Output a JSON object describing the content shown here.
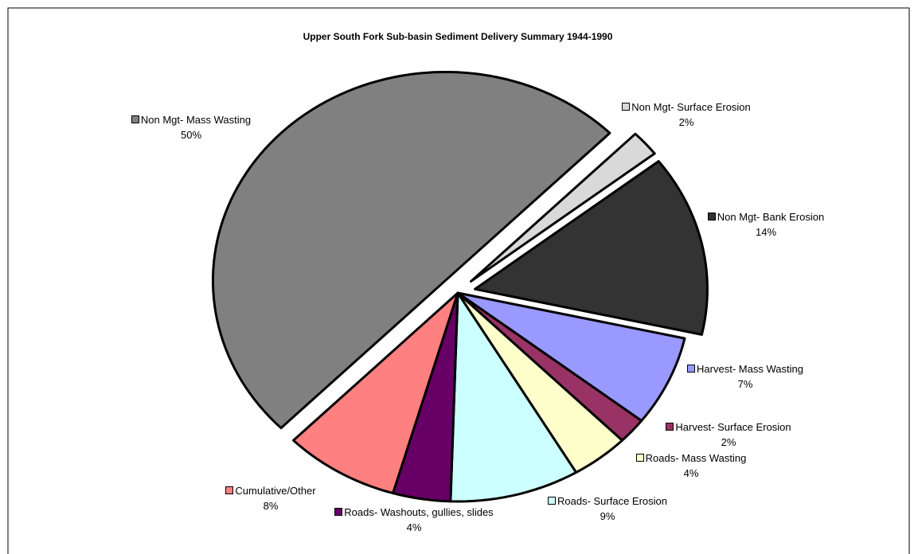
{
  "chart_data": {
    "type": "pie",
    "title": "Upper South Fork Sub-basin Sediment Delivery Summary 1944-1990",
    "categories": [
      "Non Mgt- Mass Wasting",
      "Non Mgt- Surface Erosion",
      "Non Mgt- Bank Erosion",
      "Harvest- Mass Wasting",
      "Harvest- Surface Erosion",
      "Roads- Mass Wasting",
      "Roads- Surface Erosion",
      "Roads- Washouts, gullies, slides",
      "Cumulative/Other"
    ],
    "values": [
      50,
      2,
      14,
      7,
      2,
      4,
      9,
      4,
      8
    ],
    "value_labels": [
      "50%",
      "2%",
      "14%",
      "7%",
      "2%",
      "4%",
      "9%",
      "4%",
      "8%"
    ],
    "colors": [
      "#808080",
      "#d9d9d9",
      "#333333",
      "#9999ff",
      "#993366",
      "#ffffcc",
      "#ccffff",
      "#660066",
      "#ff8080"
    ],
    "explode": [
      true,
      true,
      true,
      false,
      false,
      false,
      false,
      false,
      false
    ]
  }
}
